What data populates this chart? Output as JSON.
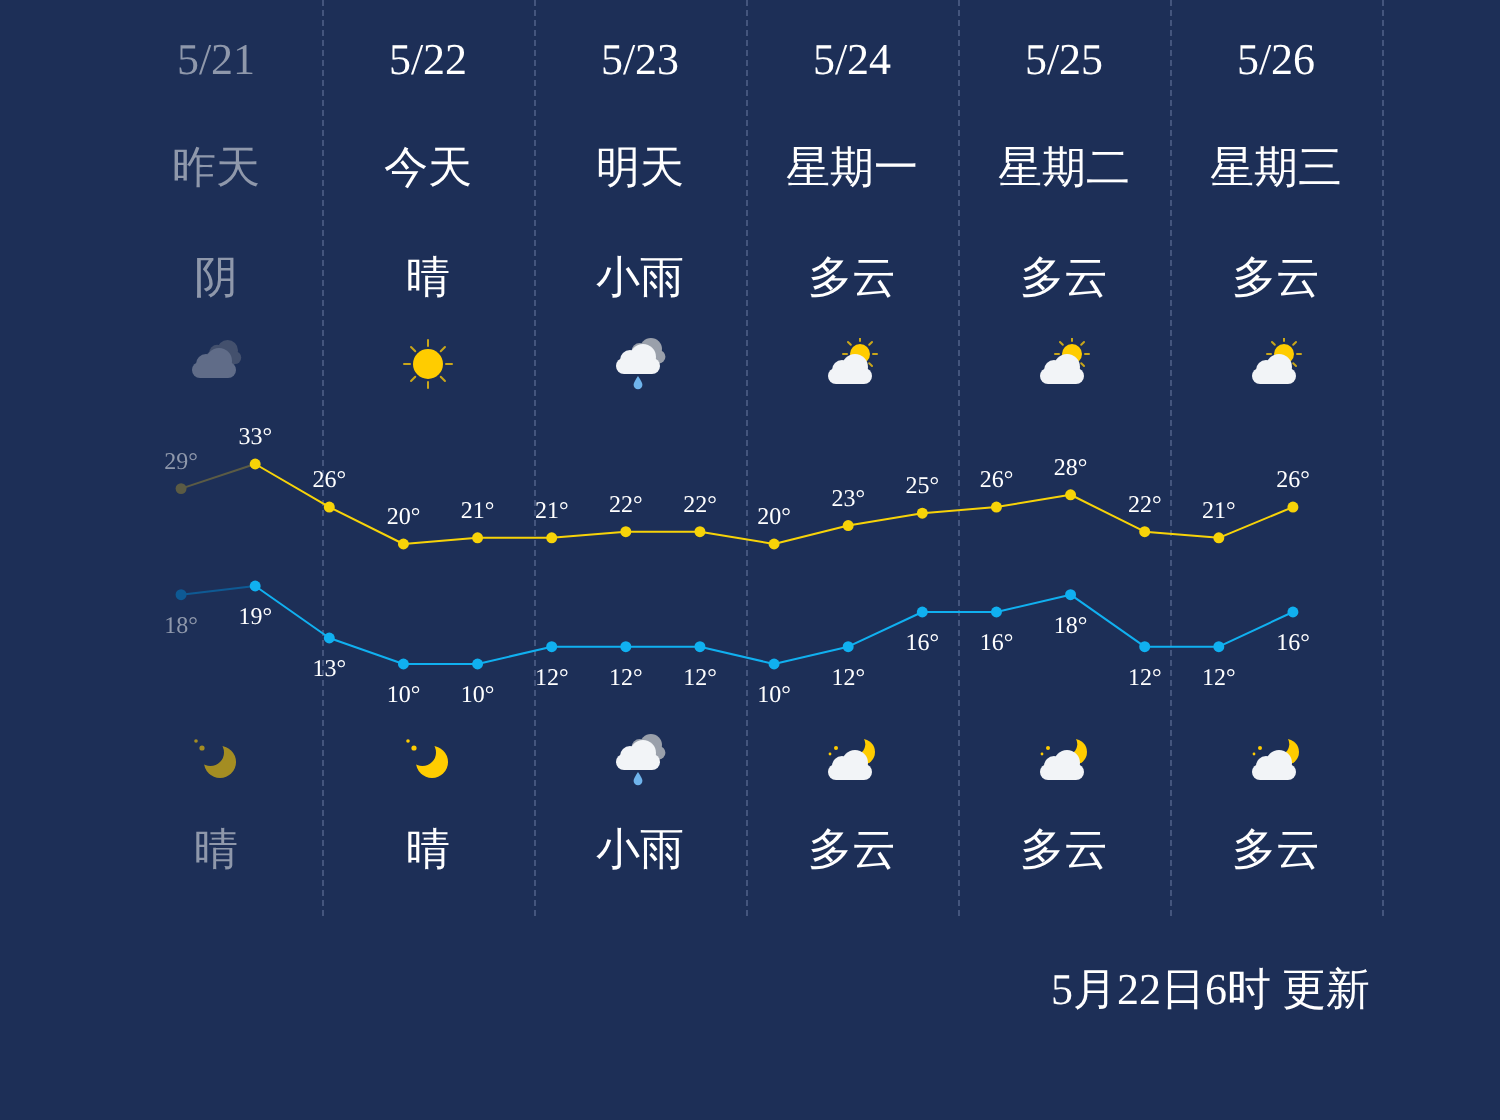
{
  "chart_data": [
    {
      "type": "line",
      "categories": [
        null,
        null,
        null,
        null,
        null,
        null,
        null,
        null,
        null,
        null,
        null,
        null,
        null,
        null,
        null,
        null
      ],
      "series": [
        {
          "color": "#f7d308",
          "colors": [
            "#5b5b44",
            "#f7d308",
            "#f7d308",
            "#f7d308",
            "#f7d308",
            "#f7d308",
            "#f7d308",
            "#f7d308",
            "#f7d308",
            "#f7d308",
            "#f7d308",
            "#f7d308",
            "#f7d308",
            "#f7d308",
            "#f7d308",
            "#f7d308"
          ],
          "values": [
            29,
            33,
            26,
            20,
            21,
            21,
            22,
            22,
            20,
            23,
            25,
            26,
            28,
            22,
            21,
            26
          ],
          "value_labels": [
            "29°",
            "33°",
            "26°",
            "20°",
            "21°",
            "21°",
            "22°",
            "22°",
            "20°",
            "23°",
            "25°",
            "26°",
            "28°",
            "22°",
            "21°",
            "26°"
          ]
        }
      ],
      "tick_labels": false,
      "marker": "circle",
      "line_style": "solid",
      "annotations": [
        "5/21",
        "5/22",
        "5/23",
        "5/24",
        "5/25",
        "5/26",
        "昨天",
        "今天",
        "明天",
        "星期一",
        "星期二",
        "星期三",
        "阴",
        "晴",
        "小雨",
        "多云",
        "多云",
        "多云"
      ]
    },
    {
      "type": "line",
      "categories": [
        null,
        null,
        null,
        null,
        null,
        null,
        null,
        null,
        null,
        null,
        null,
        null,
        null,
        null,
        null,
        null
      ],
      "series": [
        {
          "color": "#10b0f0",
          "colors": [
            "#0e5a94",
            "#10b0f0",
            "#10b0f0",
            "#10b0f0",
            "#10b0f0",
            "#10b0f0",
            "#10b0f0",
            "#10b0f0",
            "#10b0f0",
            "#10b0f0",
            "#10b0f0",
            "#10b0f0",
            "#10b0f0",
            "#10b0f0",
            "#10b0f0",
            "#10b0f0"
          ],
          "values": [
            18,
            19,
            13,
            10,
            10,
            12,
            12,
            12,
            10,
            12,
            16,
            16,
            18,
            12,
            12,
            16
          ],
          "value_labels": [
            "18°",
            "19°",
            "13°",
            "10°",
            "10°",
            "12°",
            "12°",
            "12°",
            "10°",
            "12°",
            "16°",
            "16°",
            "18°",
            "12°",
            "12°",
            "16°"
          ]
        }
      ],
      "tick_labels": false,
      "marker": "circle",
      "line_style": "solid",
      "annotations": [
        "晴",
        "晴",
        "小雨",
        "多云",
        "多云",
        "多云",
        "5月22日6时 更新"
      ]
    }
  ]
}
